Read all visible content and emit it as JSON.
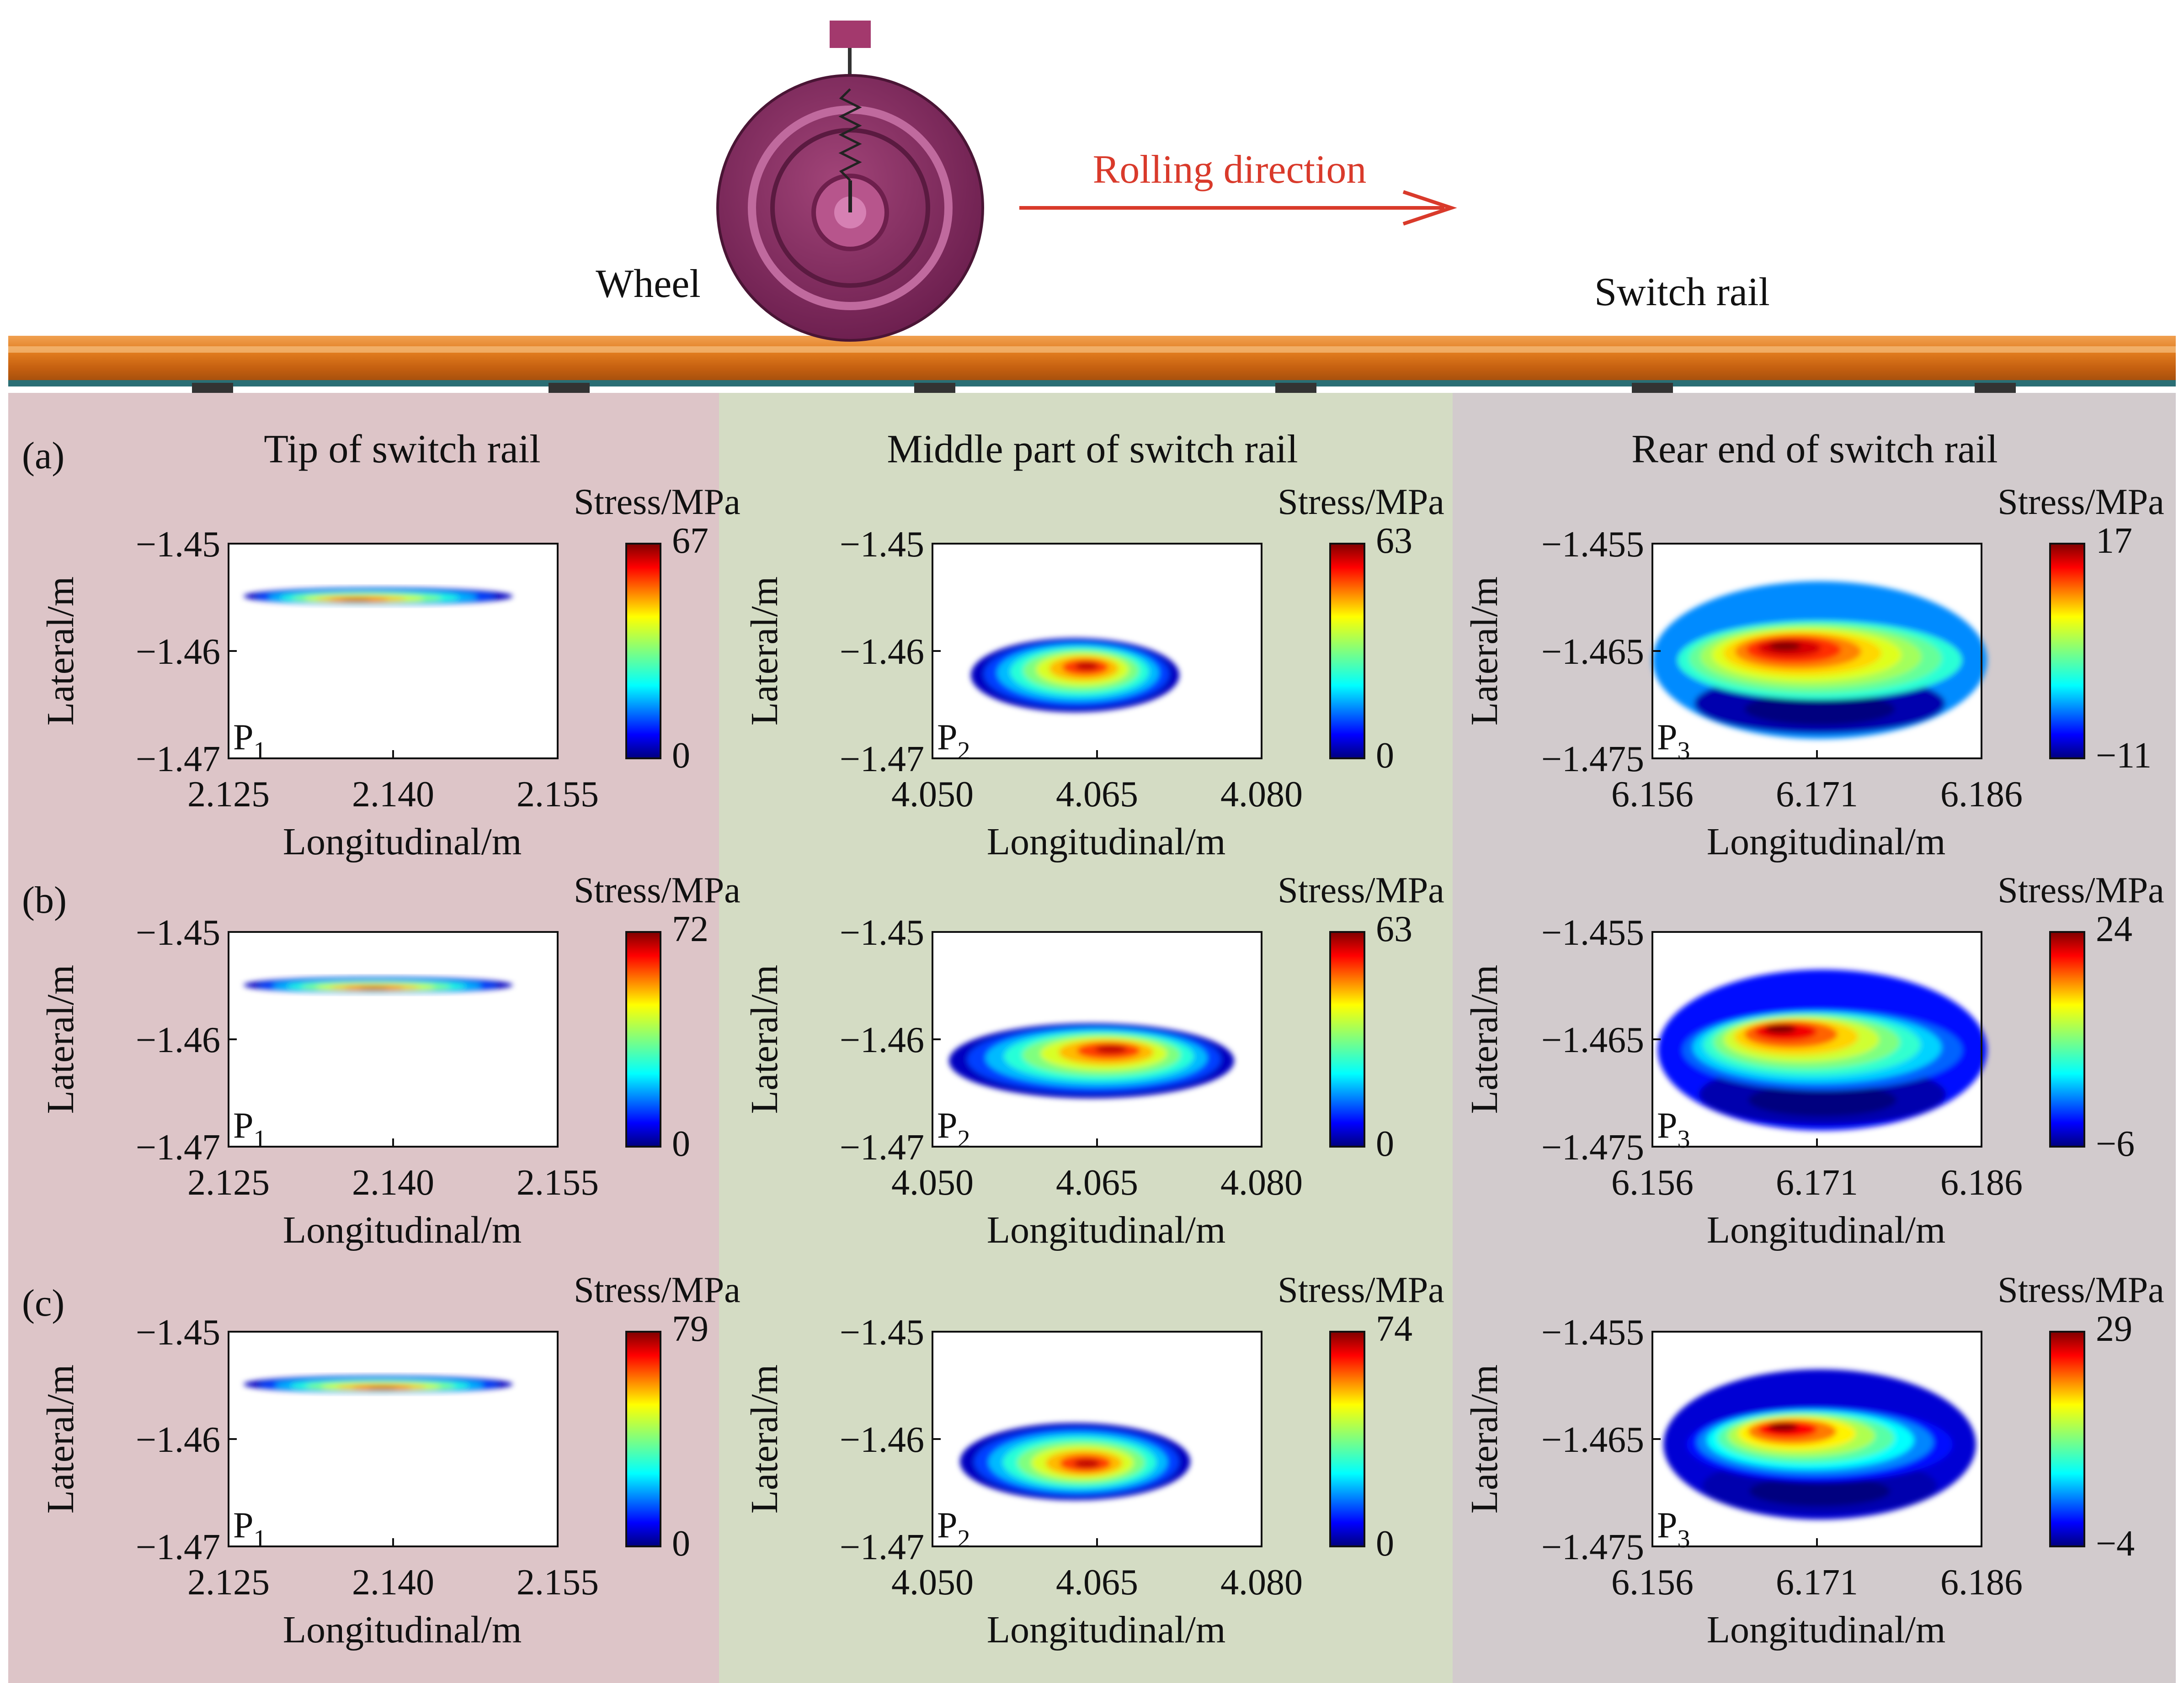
{
  "top": {
    "wheel_label": "Wheel",
    "rail_label": "Switch rail",
    "rolling_label": "Rolling direction",
    "colors": {
      "wheel": "#8a2d62",
      "rail": "#e07b1e",
      "arrow": "#d93a2b"
    }
  },
  "columns": [
    {
      "title": "Tip of switch rail",
      "bg": "#ddc5c8"
    },
    {
      "title": "Middle part of switch rail",
      "bg": "#d4dcc4"
    },
    {
      "title": "Rear end of switch rail",
      "bg": "#d2cbcd"
    }
  ],
  "rows": [
    {
      "label": "(a)"
    },
    {
      "label": "(b)"
    },
    {
      "label": "(c)"
    }
  ],
  "chart_data": [
    {
      "type": "heatmap",
      "row": "(a)",
      "column": "Tip of switch rail",
      "point": "P",
      "point_sub": "1",
      "xlabel": "Longitudinal/m",
      "ylabel": "Lateral/m",
      "xticks": [
        "2.125",
        "2.140",
        "2.155"
      ],
      "yticks": [
        "−1.45",
        "−1.46",
        "−1.47"
      ],
      "xlim": [
        2.125,
        2.158
      ],
      "ylim": [
        -1.47,
        -1.45
      ],
      "colorbar_title": "Stress/MPa",
      "cbar_max": "67",
      "cbar_min": "0",
      "range": [
        0,
        67
      ],
      "contact_patch": {
        "x_range": [
          2.1265,
          2.1535
        ],
        "y_range": [
          -1.4557,
          -1.4541
        ],
        "peak_x": 2.1375,
        "peak_y": -1.4553,
        "peak_value": 67
      }
    },
    {
      "type": "heatmap",
      "row": "(a)",
      "column": "Middle part of switch rail",
      "point": "P",
      "point_sub": "2",
      "xlabel": "Longitudinal/m",
      "ylabel": "Lateral/m",
      "xticks": [
        "4.050",
        "4.065",
        "4.080"
      ],
      "yticks": [
        "−1.45",
        "−1.46",
        "−1.47"
      ],
      "xlim": [
        4.05,
        4.08
      ],
      "ylim": [
        -1.47,
        -1.45
      ],
      "colorbar_title": "Stress/MPa",
      "cbar_max": "63",
      "cbar_min": "0",
      "range": [
        0,
        63
      ],
      "contact_patch": {
        "x_range": [
          4.0535,
          4.0725
        ],
        "y_range": [
          -1.4657,
          -1.4588
        ],
        "peak_x": 4.0642,
        "peak_y": -1.4613,
        "peak_value": 63
      }
    },
    {
      "type": "heatmap",
      "row": "(a)",
      "column": "Rear end of switch rail",
      "point": "P",
      "point_sub": "3",
      "xlabel": "Longitudinal/m",
      "ylabel": "Lateral/m",
      "xticks": [
        "6.156",
        "6.171",
        "6.186"
      ],
      "yticks": [
        "−1.455",
        "−1.465",
        "−1.475"
      ],
      "xlim": [
        6.156,
        6.186
      ],
      "ylim": [
        -1.475,
        -1.455
      ],
      "colorbar_title": "Stress/MPa",
      "cbar_max": "17",
      "cbar_min": "−11",
      "range": [
        -11,
        17
      ],
      "contact_patch": {
        "x_range": [
          6.156,
          6.1865
        ],
        "y_range": [
          -1.4732,
          -1.4585
        ],
        "peak_x": 6.1677,
        "peak_y": -1.4644,
        "peak_value": 17,
        "low_value": -11
      }
    },
    {
      "type": "heatmap",
      "row": "(b)",
      "column": "Tip of switch rail",
      "point": "P",
      "point_sub": "1",
      "xlabel": "Longitudinal/m",
      "ylabel": "Lateral/m",
      "xticks": [
        "2.125",
        "2.140",
        "2.155"
      ],
      "yticks": [
        "−1.45",
        "−1.46",
        "−1.47"
      ],
      "xlim": [
        2.125,
        2.158
      ],
      "ylim": [
        -1.47,
        -1.45
      ],
      "colorbar_title": "Stress/MPa",
      "cbar_max": "72",
      "cbar_min": "0",
      "range": [
        0,
        72
      ],
      "contact_patch": {
        "x_range": [
          2.1265,
          2.1535
        ],
        "y_range": [
          -1.4557,
          -1.4542
        ],
        "peak_x": 2.1395,
        "peak_y": -1.4553,
        "peak_value": 72
      }
    },
    {
      "type": "heatmap",
      "row": "(b)",
      "column": "Middle part of switch rail",
      "point": "P",
      "point_sub": "2",
      "xlabel": "Longitudinal/m",
      "ylabel": "Lateral/m",
      "xticks": [
        "4.050",
        "4.065",
        "4.080"
      ],
      "yticks": [
        "−1.45",
        "−1.46",
        "−1.47"
      ],
      "xlim": [
        4.05,
        4.08
      ],
      "ylim": [
        -1.47,
        -1.45
      ],
      "colorbar_title": "Stress/MPa",
      "cbar_max": "63",
      "cbar_min": "0",
      "range": [
        0,
        63
      ],
      "contact_patch": {
        "x_range": [
          4.0515,
          4.0775
        ],
        "y_range": [
          -1.4655,
          -1.4585
        ],
        "peak_x": 4.0665,
        "peak_y": -1.4608,
        "peak_value": 63
      }
    },
    {
      "type": "heatmap",
      "row": "(b)",
      "column": "Rear end of switch rail",
      "point": "P",
      "point_sub": "3",
      "xlabel": "Longitudinal/m",
      "ylabel": "Lateral/m",
      "xticks": [
        "6.156",
        "6.171",
        "6.186"
      ],
      "yticks": [
        "−1.455",
        "−1.465",
        "−1.475"
      ],
      "xlim": [
        6.156,
        6.186
      ],
      "ylim": [
        -1.475,
        -1.455
      ],
      "colorbar_title": "Stress/MPa",
      "cbar_max": "24",
      "cbar_min": "−6",
      "range": [
        -6,
        24
      ],
      "contact_patch": {
        "x_range": [
          6.1565,
          6.1865
        ],
        "y_range": [
          -1.4735,
          -1.4585
        ],
        "peak_x": 6.1672,
        "peak_y": -1.4638,
        "peak_value": 24,
        "low_value": -6
      }
    },
    {
      "type": "heatmap",
      "row": "(c)",
      "column": "Tip of switch rail",
      "point": "P",
      "point_sub": "1",
      "xlabel": "Longitudinal/m",
      "ylabel": "Lateral/m",
      "xticks": [
        "2.125",
        "2.140",
        "2.155"
      ],
      "yticks": [
        "−1.45",
        "−1.46",
        "−1.47"
      ],
      "xlim": [
        2.125,
        2.158
      ],
      "ylim": [
        -1.47,
        -1.45
      ],
      "colorbar_title": "Stress/MPa",
      "cbar_max": "79",
      "cbar_min": "0",
      "range": [
        0,
        79
      ],
      "contact_patch": {
        "x_range": [
          2.1265,
          2.1535
        ],
        "y_range": [
          -1.4557,
          -1.4541
        ],
        "peak_x": 2.1405,
        "peak_y": -1.4553,
        "peak_value": 79
      }
    },
    {
      "type": "heatmap",
      "row": "(c)",
      "column": "Middle part of switch rail",
      "point": "P",
      "point_sub": "2",
      "xlabel": "Longitudinal/m",
      "ylabel": "Lateral/m",
      "xticks": [
        "4.050",
        "4.065",
        "4.080"
      ],
      "yticks": [
        "−1.45",
        "−1.46",
        "−1.47"
      ],
      "xlim": [
        4.05,
        4.08
      ],
      "ylim": [
        -1.47,
        -1.45
      ],
      "colorbar_title": "Stress/MPa",
      "cbar_max": "74",
      "cbar_min": "0",
      "range": [
        0,
        74
      ],
      "contact_patch": {
        "x_range": [
          4.0525,
          4.0735
        ],
        "y_range": [
          -1.4657,
          -1.4585
        ],
        "peak_x": 4.0642,
        "peak_y": -1.4623,
        "peak_value": 74
      }
    },
    {
      "type": "heatmap",
      "row": "(c)",
      "column": "Rear end of switch rail",
      "point": "P",
      "point_sub": "3",
      "xlabel": "Longitudinal/m",
      "ylabel": "Lateral/m",
      "xticks": [
        "6.156",
        "6.171",
        "6.186"
      ],
      "yticks": [
        "−1.455",
        "−1.465",
        "−1.475"
      ],
      "xlim": [
        6.156,
        6.186
      ],
      "ylim": [
        -1.475,
        -1.455
      ],
      "colorbar_title": "Stress/MPa",
      "cbar_max": "29",
      "cbar_min": "−4",
      "range": [
        -4,
        29
      ],
      "contact_patch": {
        "x_range": [
          6.157,
          6.1855
        ],
        "y_range": [
          -1.4725,
          -1.4585
        ],
        "peak_x": 6.1675,
        "peak_y": -1.4637,
        "peak_value": 29,
        "low_value": -4
      }
    }
  ]
}
